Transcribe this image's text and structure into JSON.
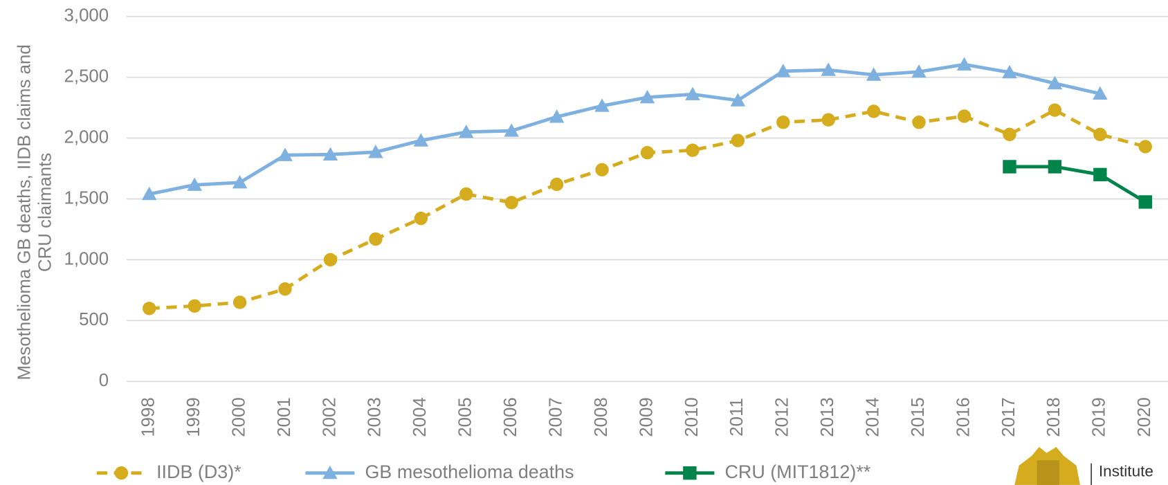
{
  "chart_data": {
    "type": "line",
    "ylabel": [
      "Mesothelioma GB deaths, IIDB claims and",
      "CRU claimants"
    ],
    "categories": [
      "1998",
      "1999",
      "2000",
      "2001",
      "2002",
      "2003",
      "2004",
      "2005",
      "2006",
      "2007",
      "2008",
      "2009",
      "2010",
      "2011",
      "2012",
      "2013",
      "2014",
      "2015",
      "2016",
      "2017",
      "2018",
      "2019",
      "2020"
    ],
    "series": [
      {
        "name": "IIDB (D3)*",
        "color": "#d4ac1e",
        "dash": true,
        "marker": "circle",
        "values": [
          600,
          620,
          650,
          760,
          1000,
          1170,
          1340,
          1540,
          1470,
          1620,
          1740,
          1880,
          1900,
          1980,
          2130,
          2150,
          2220,
          2130,
          2180,
          2030,
          2230,
          2030,
          1930
        ]
      },
      {
        "name": "GB mesothelioma deaths",
        "color": "#7eb0e0",
        "dash": false,
        "marker": "triangle",
        "values": [
          1540,
          1615,
          1635,
          1860,
          1865,
          1885,
          1980,
          2050,
          2060,
          2175,
          2265,
          2335,
          2360,
          2310,
          2550,
          2560,
          2520,
          2545,
          2605,
          2540,
          2450,
          2365,
          null
        ]
      },
      {
        "name": "CRU (MIT1812)**",
        "color": "#00844a",
        "dash": false,
        "marker": "square",
        "values": [
          null,
          null,
          null,
          null,
          null,
          null,
          null,
          null,
          null,
          null,
          null,
          null,
          null,
          null,
          null,
          null,
          null,
          null,
          null,
          1765,
          1765,
          1700,
          1475
        ]
      }
    ],
    "ylim": [
      0,
      3000
    ],
    "yticks": [
      0,
      500,
      {
        "value": 1000,
        "label": "1,000"
      },
      {
        "value": 1500,
        "label": "1,500"
      },
      {
        "value": 2000,
        "label": "2,000"
      },
      {
        "value": 2500,
        "label": "2,500"
      },
      {
        "value": 3000,
        "label": "3,000"
      }
    ],
    "grid": true,
    "legend": "bottom",
    "logo_text": "Institute"
  }
}
